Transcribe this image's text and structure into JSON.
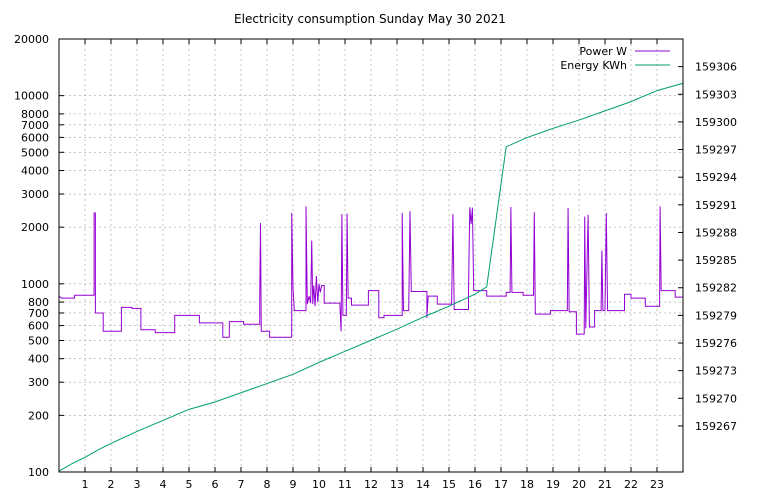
{
  "chart_data": {
    "type": "line",
    "title": "Electricity consumption Sunday May 30 2021",
    "xlabel": "",
    "ylabel": "",
    "y2label": "",
    "x_range": [
      0,
      24
    ],
    "y_scale": "log",
    "y_range": [
      100,
      20000
    ],
    "y2_range": [
      159262,
      159309
    ],
    "grid": true,
    "legend_position": "top-right",
    "x_ticks": [
      "1",
      "2",
      "3",
      "4",
      "5",
      "6",
      "7",
      "8",
      "9",
      "10",
      "11",
      "12",
      "13",
      "14",
      "15",
      "16",
      "17",
      "18",
      "19",
      "20",
      "21",
      "22",
      "23"
    ],
    "y_ticks": [
      "100",
      "200",
      "300",
      "400",
      "500",
      "600",
      "700",
      "800",
      "1000",
      "2000",
      "3000",
      "4000",
      "5000",
      "6000",
      "7000",
      "8000",
      "10000",
      "20000"
    ],
    "y2_ticks": [
      "159267",
      "159270",
      "159273",
      "159276",
      "159279",
      "159282",
      "159285",
      "159288",
      "159291",
      "159294",
      "159297",
      "159300",
      "159303",
      "159306"
    ],
    "series": [
      {
        "name": "Power W",
        "axis": "left",
        "color": "#9400d3",
        "points": [
          [
            0,
            860
          ],
          [
            0.05,
            850
          ],
          [
            0.1,
            840
          ],
          [
            0.6,
            840
          ],
          [
            0.6,
            870
          ],
          [
            1.35,
            870
          ],
          [
            1.35,
            2380
          ],
          [
            1.4,
            2380
          ],
          [
            1.4,
            700
          ],
          [
            1.7,
            700
          ],
          [
            1.7,
            560
          ],
          [
            2.4,
            560
          ],
          [
            2.4,
            750
          ],
          [
            2.8,
            750
          ],
          [
            2.8,
            740
          ],
          [
            3.15,
            740
          ],
          [
            3.15,
            570
          ],
          [
            3.7,
            570
          ],
          [
            3.7,
            550
          ],
          [
            4.45,
            550
          ],
          [
            4.45,
            680
          ],
          [
            5.4,
            680
          ],
          [
            5.4,
            620
          ],
          [
            6.3,
            620
          ],
          [
            6.3,
            520
          ],
          [
            6.55,
            520
          ],
          [
            6.55,
            630
          ],
          [
            7.1,
            630
          ],
          [
            7.1,
            610
          ],
          [
            7.6,
            610
          ],
          [
            7.72,
            610
          ],
          [
            7.72,
            820
          ],
          [
            7.75,
            2100
          ],
          [
            7.78,
            560
          ],
          [
            8.1,
            560
          ],
          [
            8.1,
            520
          ],
          [
            8.95,
            520
          ],
          [
            8.95,
            2380
          ],
          [
            9.0,
            960
          ],
          [
            9.05,
            720
          ],
          [
            9.5,
            720
          ],
          [
            9.5,
            2580
          ],
          [
            9.55,
            780
          ],
          [
            9.62,
            860
          ],
          [
            9.68,
            790
          ],
          [
            9.72,
            1700
          ],
          [
            9.76,
            780
          ],
          [
            9.8,
            980
          ],
          [
            9.85,
            760
          ],
          [
            9.9,
            1100
          ],
          [
            9.95,
            800
          ],
          [
            10.0,
            1000
          ],
          [
            10.05,
            900
          ],
          [
            10.1,
            980
          ],
          [
            10.2,
            980
          ],
          [
            10.2,
            790
          ],
          [
            10.8,
            790
          ],
          [
            10.85,
            560
          ],
          [
            10.88,
            2350
          ],
          [
            10.92,
            680
          ],
          [
            11.05,
            680
          ],
          [
            11.08,
            2360
          ],
          [
            11.12,
            840
          ],
          [
            11.25,
            840
          ],
          [
            11.25,
            770
          ],
          [
            11.9,
            770
          ],
          [
            11.9,
            920
          ],
          [
            12.3,
            920
          ],
          [
            12.3,
            660
          ],
          [
            12.5,
            660
          ],
          [
            12.5,
            680
          ],
          [
            13.2,
            680
          ],
          [
            13.2,
            2380
          ],
          [
            13.25,
            720
          ],
          [
            13.45,
            720
          ],
          [
            13.5,
            2430
          ],
          [
            13.55,
            910
          ],
          [
            14.15,
            910
          ],
          [
            14.15,
            660
          ],
          [
            14.2,
            860
          ],
          [
            14.55,
            860
          ],
          [
            14.55,
            780
          ],
          [
            15.1,
            780
          ],
          [
            15.15,
            2350
          ],
          [
            15.2,
            730
          ],
          [
            15.75,
            730
          ],
          [
            15.75,
            920
          ],
          [
            15.8,
            2550
          ],
          [
            15.85,
            2080
          ],
          [
            15.9,
            2540
          ],
          [
            15.95,
            920
          ],
          [
            16.45,
            920
          ],
          [
            16.45,
            860
          ],
          [
            17.2,
            860
          ],
          [
            17.2,
            900
          ],
          [
            17.35,
            900
          ],
          [
            17.38,
            2560
          ],
          [
            17.42,
            900
          ],
          [
            17.85,
            900
          ],
          [
            17.85,
            870
          ],
          [
            18.25,
            870
          ],
          [
            18.28,
            2400
          ],
          [
            18.32,
            690
          ],
          [
            18.9,
            690
          ],
          [
            18.9,
            720
          ],
          [
            19.55,
            720
          ],
          [
            19.58,
            2530
          ],
          [
            19.62,
            710
          ],
          [
            19.9,
            710
          ],
          [
            19.9,
            540
          ],
          [
            20.2,
            540
          ],
          [
            20.22,
            2280
          ],
          [
            20.26,
            580
          ],
          [
            20.35,
            2330
          ],
          [
            20.4,
            590
          ],
          [
            20.6,
            590
          ],
          [
            20.6,
            720
          ],
          [
            20.85,
            720
          ],
          [
            20.88,
            1500
          ],
          [
            20.92,
            720
          ],
          [
            21.0,
            720
          ],
          [
            21.05,
            2380
          ],
          [
            21.1,
            720
          ],
          [
            21.75,
            720
          ],
          [
            21.75,
            880
          ],
          [
            22.0,
            880
          ],
          [
            22.0,
            840
          ],
          [
            22.55,
            840
          ],
          [
            22.55,
            760
          ],
          [
            23.1,
            760
          ],
          [
            23.12,
            2580
          ],
          [
            23.16,
            920
          ],
          [
            23.7,
            920
          ],
          [
            23.7,
            850
          ],
          [
            24.0,
            850
          ]
        ]
      },
      {
        "name": "Energy KWh",
        "axis": "right",
        "color": "#009e73",
        "points": [
          [
            0,
            159262.1
          ],
          [
            0.5,
            159262.9
          ],
          [
            1,
            159263.6
          ],
          [
            1.5,
            159264.4
          ],
          [
            2,
            159265.1
          ],
          [
            3,
            159266.4
          ],
          [
            4,
            159267.6
          ],
          [
            5,
            159268.8
          ],
          [
            6,
            159269.6
          ],
          [
            7,
            159270.6
          ],
          [
            8,
            159271.6
          ],
          [
            9,
            159272.6
          ],
          [
            10,
            159273.9
          ],
          [
            11,
            159275.1
          ],
          [
            12,
            159276.3
          ],
          [
            13,
            159277.5
          ],
          [
            14,
            159278.8
          ],
          [
            15,
            159280.0
          ],
          [
            16,
            159281.3
          ],
          [
            16.45,
            159282.1
          ],
          [
            17.2,
            159297.3
          ],
          [
            18,
            159298.3
          ],
          [
            19,
            159299.3
          ],
          [
            20,
            159300.2
          ],
          [
            21,
            159301.2
          ],
          [
            22,
            159302.2
          ],
          [
            23,
            159303.4
          ],
          [
            24,
            159304.2
          ]
        ]
      }
    ]
  }
}
